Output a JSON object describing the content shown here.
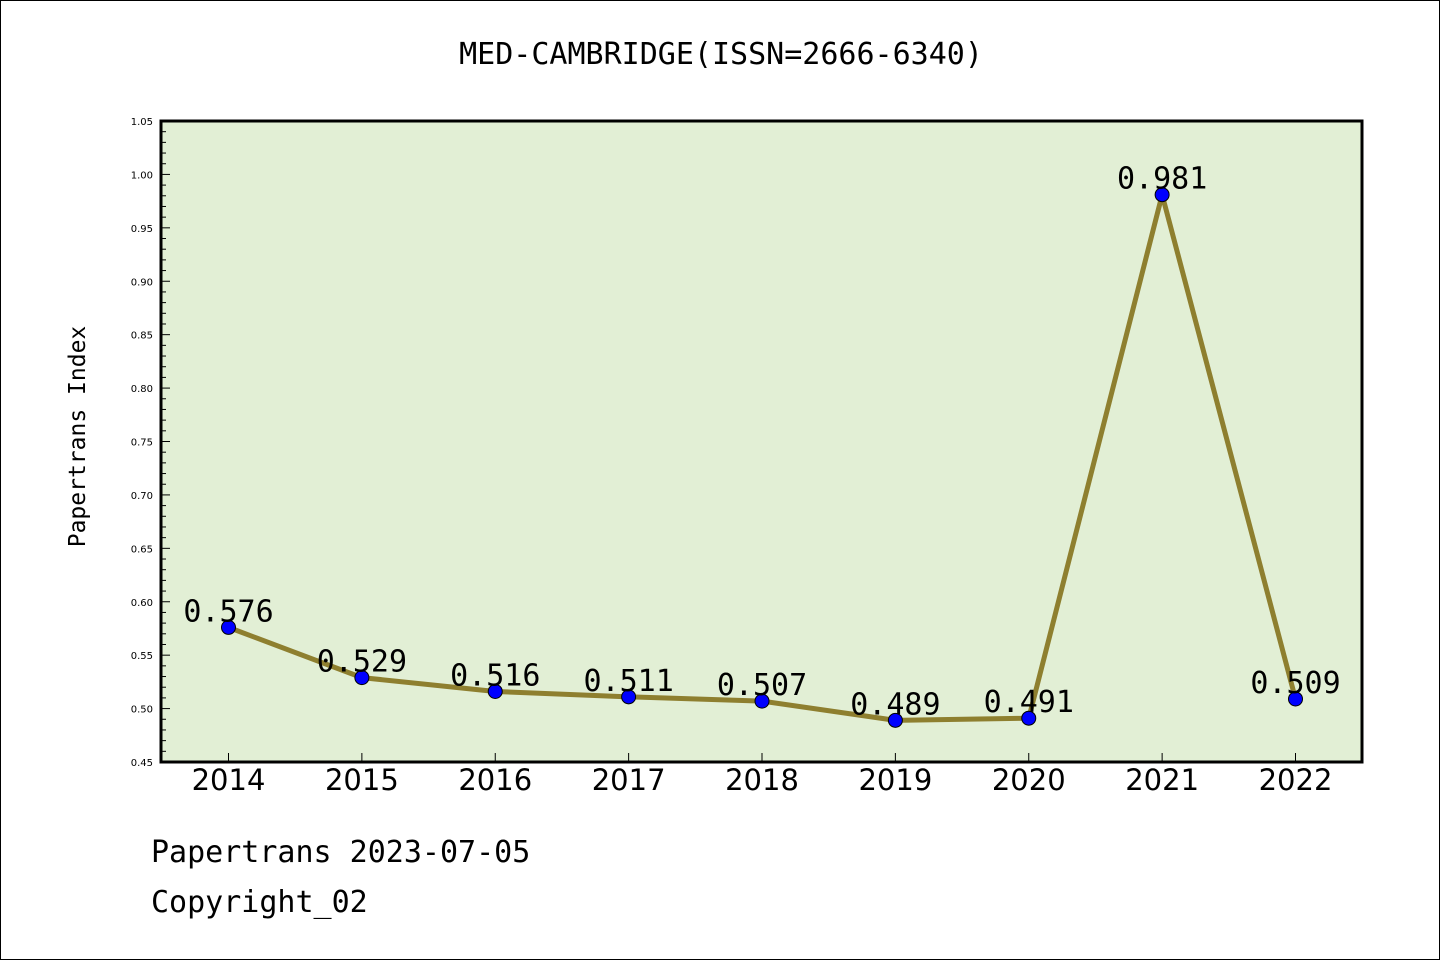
{
  "chart_data": {
    "type": "line",
    "title": "MED-CAMBRIDGE(ISSN=2666-6340)",
    "xlabel": "",
    "ylabel": "Papertrans Index",
    "categories": [
      "2014",
      "2015",
      "2016",
      "2017",
      "2018",
      "2019",
      "2020",
      "2021",
      "2022"
    ],
    "values": [
      0.576,
      0.529,
      0.516,
      0.511,
      0.507,
      0.489,
      0.491,
      0.981,
      0.509
    ],
    "data_labels": [
      "0.576",
      "0.529",
      "0.516",
      "0.511",
      "0.507",
      "0.489",
      "0.491",
      "0.981",
      "0.509"
    ],
    "ylim": [
      0.45,
      1.05
    ],
    "yticks": [
      "0.45",
      "0.50",
      "0.55",
      "0.60",
      "0.65",
      "0.70",
      "0.75",
      "0.80",
      "0.85",
      "0.90",
      "0.95",
      "1.00",
      "1.05"
    ],
    "grid": false,
    "colors": {
      "plot_background": "#e2efd5",
      "line": "#8e7f2f",
      "marker": "#0000ff"
    }
  },
  "footer": {
    "source": "Papertrans 2023-07-05",
    "copyright": "Copyright_02"
  }
}
